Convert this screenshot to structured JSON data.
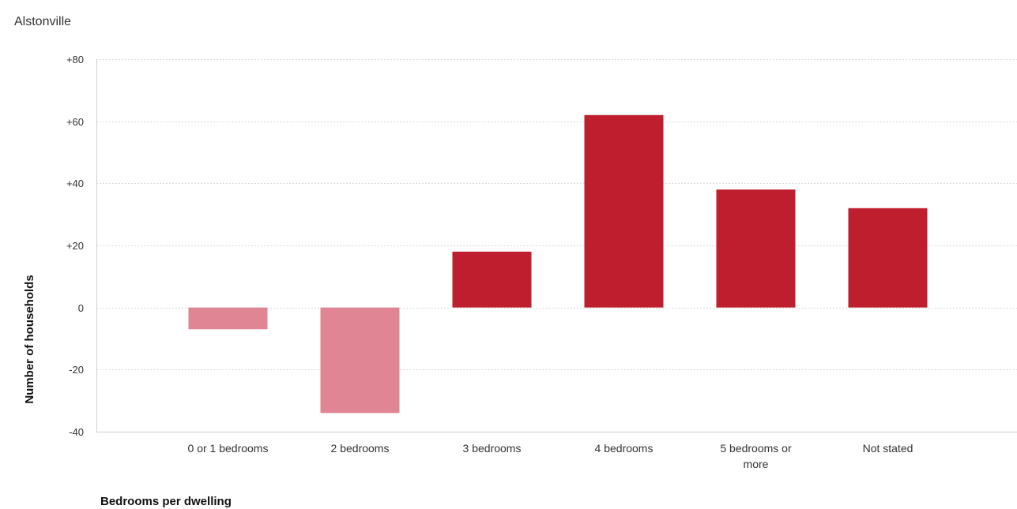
{
  "chart_data": {
    "type": "bar",
    "title": "Alstonville",
    "xlabel": "Bedrooms per dwelling",
    "ylabel": "Number of households",
    "categories": [
      "0 or 1 bedrooms",
      "2 bedrooms",
      "3 bedrooms",
      "4 bedrooms",
      "5 bedrooms or more",
      "Not stated"
    ],
    "category_lines": [
      [
        "0 or 1 bedrooms"
      ],
      [
        "2 bedrooms"
      ],
      [
        "3 bedrooms"
      ],
      [
        "4 bedrooms"
      ],
      [
        "5 bedrooms or",
        "more"
      ],
      [
        "Not stated"
      ]
    ],
    "values": [
      -7,
      -34,
      18,
      62,
      38,
      32
    ],
    "ylim": [
      -40,
      80
    ],
    "yticks": [
      80,
      60,
      40,
      20,
      0,
      -20,
      -40
    ],
    "ytick_labels": [
      "+80",
      "+60",
      "+40",
      "+20",
      "0",
      "-20",
      "-40"
    ],
    "grid": true,
    "colors": {
      "positive": "#be1e2d",
      "negative": "#e08594"
    }
  }
}
